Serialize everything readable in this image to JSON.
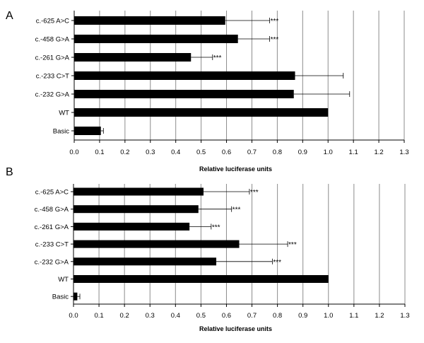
{
  "chart_data": [
    {
      "panel_label": "A",
      "type": "bar",
      "orientation": "horizontal",
      "categories": [
        "c.-625 A>C",
        "c.-458 G>A",
        "c.-261 G>A",
        "c.-233 C>T",
        "c.-232 G>A",
        "WT",
        "Basic"
      ],
      "values": [
        0.595,
        0.645,
        0.46,
        0.87,
        0.865,
        1.0,
        0.105
      ],
      "error_plus": [
        0.175,
        0.125,
        0.085,
        0.19,
        0.22,
        0.0,
        0.01
      ],
      "annotations": [
        "***",
        "***",
        "***",
        "",
        "",
        "",
        ""
      ],
      "xlabel": "Relative luciferase units",
      "xlim": [
        0,
        1.3
      ],
      "xticks": [
        "0.0",
        "0.1",
        "0.2",
        "0.3",
        "0.4",
        "0.5",
        "0.6",
        "0.7",
        "0.8",
        "0.9",
        "1.0",
        "1.1",
        "1.2",
        "1.3"
      ],
      "grid": "vertical",
      "bar_color": "#000000",
      "legend": "none"
    },
    {
      "panel_label": "B",
      "type": "bar",
      "orientation": "horizontal",
      "categories": [
        "c.-625 A>C",
        "c.-458 G>A",
        "c.-261 G>A",
        "c.-233 C>T",
        "c.-232 G>A",
        "WT",
        "Basic"
      ],
      "values": [
        0.51,
        0.49,
        0.455,
        0.65,
        0.56,
        1.0,
        0.015
      ],
      "error_plus": [
        0.18,
        0.13,
        0.085,
        0.19,
        0.22,
        0.0,
        0.01
      ],
      "annotations": [
        "***",
        "***",
        "***",
        "***",
        "***",
        "",
        ""
      ],
      "xlabel": "Relative luciferase units",
      "xlim": [
        0,
        1.3
      ],
      "xticks": [
        "0.0",
        "0.1",
        "0.2",
        "0.3",
        "0.4",
        "0.5",
        "0.6",
        "0.7",
        "0.8",
        "0.9",
        "1.0",
        "1.1",
        "1.2",
        "1.3"
      ],
      "grid": "vertical",
      "bar_color": "#000000",
      "legend": "none"
    }
  ]
}
